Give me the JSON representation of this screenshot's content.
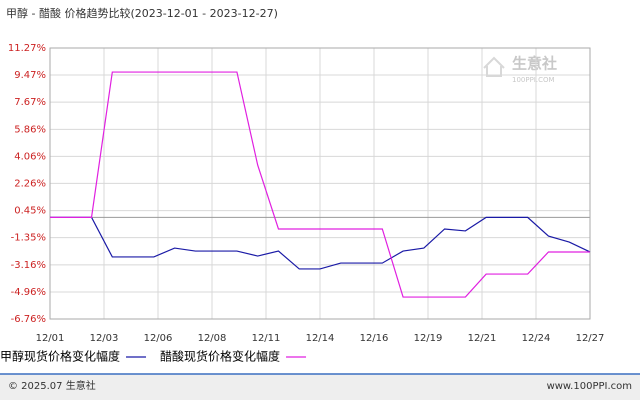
{
  "chart_data": {
    "type": "line",
    "title": "甲醇 - 醋酸 价格趋势比较(2023-12-01 - 2023-12-27)",
    "x": [
      1,
      3,
      4,
      6,
      7,
      8,
      10,
      11,
      12,
      13,
      14,
      15,
      17,
      18,
      19,
      20,
      21,
      22,
      23,
      24,
      25,
      26,
      27
    ],
    "xlim": [
      1,
      27
    ],
    "xticks": [
      {
        "value": 1,
        "label": "12/01"
      },
      {
        "value": 3.6,
        "label": "12/03"
      },
      {
        "value": 6.2,
        "label": "12/06"
      },
      {
        "value": 8.8,
        "label": "12/08"
      },
      {
        "value": 11.4,
        "label": "12/11"
      },
      {
        "value": 14,
        "label": "12/14"
      },
      {
        "value": 16.6,
        "label": "12/16"
      },
      {
        "value": 19.2,
        "label": "12/19"
      },
      {
        "value": 21.8,
        "label": "12/21"
      },
      {
        "value": 24.4,
        "label": "12/24"
      },
      {
        "value": 27,
        "label": "12/27"
      }
    ],
    "ylim": [
      -6.76,
      11.27
    ],
    "yticks": [
      {
        "value": -6.76,
        "label": "-6.76%"
      },
      {
        "value": -4.96,
        "label": "-4.96%"
      },
      {
        "value": -3.16,
        "label": "-3.16%"
      },
      {
        "value": -1.35,
        "label": "-1.35%"
      },
      {
        "value": 0.45,
        "label": "0.45%"
      },
      {
        "value": 2.26,
        "label": "2.26%"
      },
      {
        "value": 4.06,
        "label": "4.06%"
      },
      {
        "value": 5.86,
        "label": "5.86%"
      },
      {
        "value": 7.67,
        "label": "7.67%"
      },
      {
        "value": 9.47,
        "label": "9.47%"
      },
      {
        "value": 11.27,
        "label": "11.27%"
      }
    ],
    "grid": true,
    "series": [
      {
        "name": "甲醇现货价格变化幅度",
        "color": "#1a1aa6",
        "values": [
          0,
          0,
          -2.63,
          -2.63,
          -2.04,
          -2.24,
          -2.24,
          -2.57,
          -2.24,
          -3.43,
          -3.43,
          -3.04,
          -3.04,
          -2.24,
          -2.04,
          -0.77,
          -0.9,
          0,
          0,
          0,
          -1.24,
          -1.64,
          -2.3
        ]
      },
      {
        "name": "醋酸现货价格变化幅度",
        "color": "#e020e0",
        "values": [
          0,
          0,
          9.67,
          9.67,
          9.67,
          9.67,
          9.67,
          3.48,
          -0.77,
          -0.77,
          -0.77,
          -0.77,
          -0.77,
          -5.3,
          -5.3,
          -5.3,
          -5.3,
          -3.77,
          -3.77,
          -3.77,
          -2.3,
          -2.3,
          -2.3
        ]
      }
    ]
  },
  "watermark": {
    "brand": "生意社",
    "site": "100PPI.COM"
  },
  "footer": {
    "copyright": "© 2025.07 生意社",
    "site": "www.100PPI.com"
  }
}
